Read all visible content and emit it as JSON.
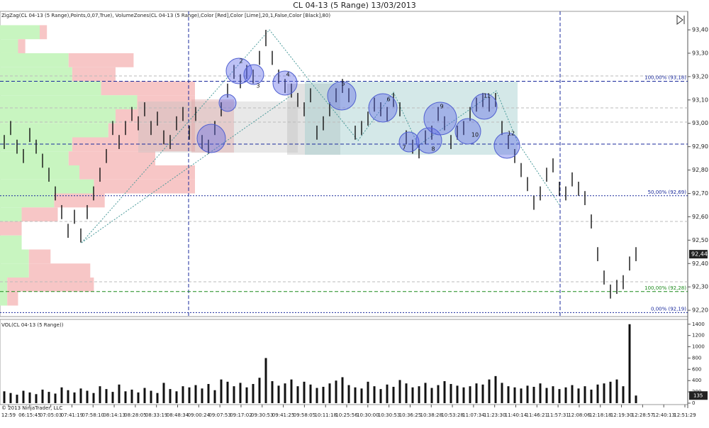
{
  "title": "CL 04-13 (5 Range)  13/03/2013",
  "indicators": "ZigZag(CL 04-13 (5 Range),Points,0,07,True), VolumeZones(CL 04-13 (5 Range),Color [Red],Color [Lime],20,1,False,Color [Black],80)",
  "copyright": "© 2013 NinjaTrader, LLC",
  "time_axis": [
    "12:59",
    "06:15:45",
    "07:05:03",
    "07:41:19",
    "07:58:10",
    "08:14:13",
    "08:28:05",
    "08:33:19",
    "08:48:34",
    "09:00:24",
    "09:07:53",
    "09:17:02",
    "09:30:53",
    "09:41:25",
    "09:58:05",
    "10:11:18",
    "10:25:56",
    "10:30:00",
    "10:30:53",
    "10:36:25",
    "10:38:28",
    "10:53:28",
    "11:07:34",
    "11:23:30",
    "11:40:14",
    "11:46:21",
    "11:57:31",
    "12:08:06",
    "12:18:18",
    "12:19:30",
    "12:28:57",
    "12:40:13",
    "12:51:29"
  ],
  "chart_data": [
    {
      "type": "range_bar",
      "color": "#111111",
      "low": [
        92.89,
        92.95,
        92.87,
        92.83,
        92.92,
        92.87,
        92.81,
        92.75,
        92.67,
        92.59,
        92.51,
        92.57,
        92.49,
        92.59,
        92.67,
        92.75,
        92.83,
        92.95,
        92.89,
        92.95,
        93.01,
        92.97,
        93.03,
        92.95,
        92.99,
        92.91,
        92.89,
        92.97,
        93.01,
        92.93,
        93.01,
        92.89,
        92.87,
        92.95,
        93.03,
        93.11,
        93.19,
        93.15,
        93.19,
        93.17,
        93.25,
        93.33,
        93.25,
        93.17,
        93.13,
        93.11,
        93.07,
        93.03,
        93.09,
        92.93,
        92.97,
        93.03,
        93.09,
        93.13,
        93.09,
        92.93,
        92.95,
        92.99,
        93.05,
        93.03,
        93.01,
        93.07,
        93.03,
        92.91,
        92.87,
        92.85,
        92.91,
        92.93,
        93.01,
        92.97,
        92.89,
        92.93,
        92.95,
        93.01,
        93.05,
        93.07,
        93.05,
        93.07,
        92.95,
        92.89,
        92.83,
        92.77,
        92.71,
        92.63,
        92.67,
        92.75,
        92.79,
        92.69,
        92.67,
        92.73,
        92.69,
        92.65,
        92.55,
        92.41,
        92.31,
        92.25,
        92.27,
        92.29,
        92.37,
        92.41
      ],
      "high": [
        92.95,
        93.01,
        92.93,
        92.89,
        92.98,
        92.93,
        92.87,
        92.81,
        92.73,
        92.65,
        92.57,
        92.63,
        92.55,
        92.65,
        92.73,
        92.81,
        92.89,
        93.01,
        92.95,
        93.01,
        93.07,
        93.03,
        93.09,
        93.01,
        93.05,
        92.97,
        92.95,
        93.03,
        93.07,
        92.99,
        93.07,
        92.95,
        92.93,
        93.01,
        93.09,
        93.17,
        93.25,
        93.21,
        93.25,
        93.23,
        93.31,
        93.4,
        93.31,
        93.23,
        93.19,
        93.17,
        93.13,
        93.09,
        93.15,
        92.99,
        93.03,
        93.09,
        93.15,
        93.19,
        93.15,
        92.99,
        93.01,
        93.05,
        93.11,
        93.09,
        93.07,
        93.13,
        93.09,
        92.97,
        92.93,
        92.91,
        92.97,
        92.99,
        93.07,
        93.03,
        92.95,
        92.99,
        93.01,
        93.07,
        93.11,
        93.13,
        93.11,
        93.13,
        93.01,
        92.95,
        92.89,
        92.83,
        92.77,
        92.69,
        92.73,
        92.81,
        92.85,
        92.75,
        92.73,
        92.79,
        92.75,
        92.71,
        92.61,
        92.47,
        92.37,
        92.31,
        92.33,
        92.35,
        92.43,
        92.47
      ],
      "ylim": [
        92.176,
        93.467
      ],
      "yticks": [
        {
          "value": 93.4,
          "label": "93,40"
        },
        {
          "value": 93.3,
          "label": "93,30"
        },
        {
          "value": 93.2,
          "label": "93,20"
        },
        {
          "value": 93.1,
          "label": "93,10"
        },
        {
          "value": 93.0,
          "label": "93,00"
        },
        {
          "value": 92.9,
          "label": "92,90"
        },
        {
          "value": 92.8,
          "label": "92,80"
        },
        {
          "value": 92.7,
          "label": "92,70"
        },
        {
          "value": 92.6,
          "label": "92,60"
        },
        {
          "value": 92.5,
          "label": "92,50"
        },
        {
          "value": 92.4,
          "label": "92,40"
        },
        {
          "value": 92.3,
          "label": "92,30"
        },
        {
          "value": 92.2,
          "label": "92,20"
        }
      ],
      "last_price": {
        "value": 92.44,
        "label": "92,44"
      },
      "fib_levels": [
        {
          "value": 93.18,
          "label": "100,00% (93,18)",
          "color": "#1a2a9c"
        },
        {
          "value": 92.69,
          "label": "50,00% (92,69)",
          "color": "#1a2a9c"
        },
        {
          "value": 92.28,
          "label": "100,00% (92,28)",
          "color": "#1c8a1c"
        },
        {
          "value": 92.19,
          "label": "0,00% (92,19)",
          "color": "#1a2a9c"
        }
      ],
      "volume_zones": {
        "up_color": "#c8f5c0",
        "down_color": "#f7c6c6",
        "low": [
          93.36,
          93.3,
          93.24,
          93.18,
          93.12,
          93.06,
          93.0,
          92.94,
          92.88,
          92.82,
          92.76,
          92.7,
          92.64,
          92.58,
          92.52,
          92.46,
          92.4,
          92.34,
          92.28,
          92.22
        ],
        "high": [
          93.42,
          93.36,
          93.3,
          93.24,
          93.18,
          93.12,
          93.06,
          93.0,
          92.94,
          92.88,
          92.82,
          92.76,
          92.7,
          92.64,
          92.58,
          92.52,
          92.46,
          92.4,
          92.34,
          92.28
        ],
        "up": [
          55,
          25,
          95,
          100,
          140,
          190,
          160,
          150,
          100,
          95,
          110,
          130,
          75,
          30,
          0,
          30,
          40,
          40,
          10,
          10
        ],
        "down": [
          10,
          10,
          90,
          60,
          130,
          80,
          110,
          120,
          170,
          120,
          160,
          140,
          70,
          50,
          30,
          0,
          30,
          85,
          120,
          15
        ]
      },
      "swings": [
        "2",
        "3",
        "4",
        "5",
        "6",
        "7",
        "8",
        "9",
        "10",
        "11",
        "12"
      ]
    },
    {
      "type": "bar",
      "title": "VOL(CL 04-13 (5 Range))",
      "color": "#111111",
      "values": [
        210,
        180,
        150,
        220,
        190,
        160,
        240,
        200,
        170,
        280,
        230,
        190,
        260,
        220,
        180,
        300,
        250,
        200,
        330,
        210,
        240,
        190,
        270,
        220,
        180,
        360,
        250,
        210,
        300,
        280,
        320,
        260,
        340,
        230,
        420,
        380,
        300,
        360,
        280,
        340,
        450,
        800,
        390,
        310,
        350,
        420,
        300,
        380,
        330,
        270,
        290,
        350,
        400,
        460,
        320,
        280,
        260,
        380,
        300,
        250,
        330,
        290,
        410,
        350,
        280,
        300,
        360,
        270,
        320,
        390,
        340,
        310,
        280,
        300,
        350,
        330,
        420,
        480,
        360,
        300,
        280,
        260,
        310,
        290,
        350,
        270,
        300,
        250,
        280,
        320,
        260,
        300,
        240,
        330,
        350,
        380,
        420,
        300,
        1400,
        135
      ],
      "ylim": [
        0,
        1460
      ],
      "yticks": [
        0,
        200,
        400,
        600,
        800,
        1000,
        1200,
        1400
      ],
      "last_value": 135
    }
  ]
}
